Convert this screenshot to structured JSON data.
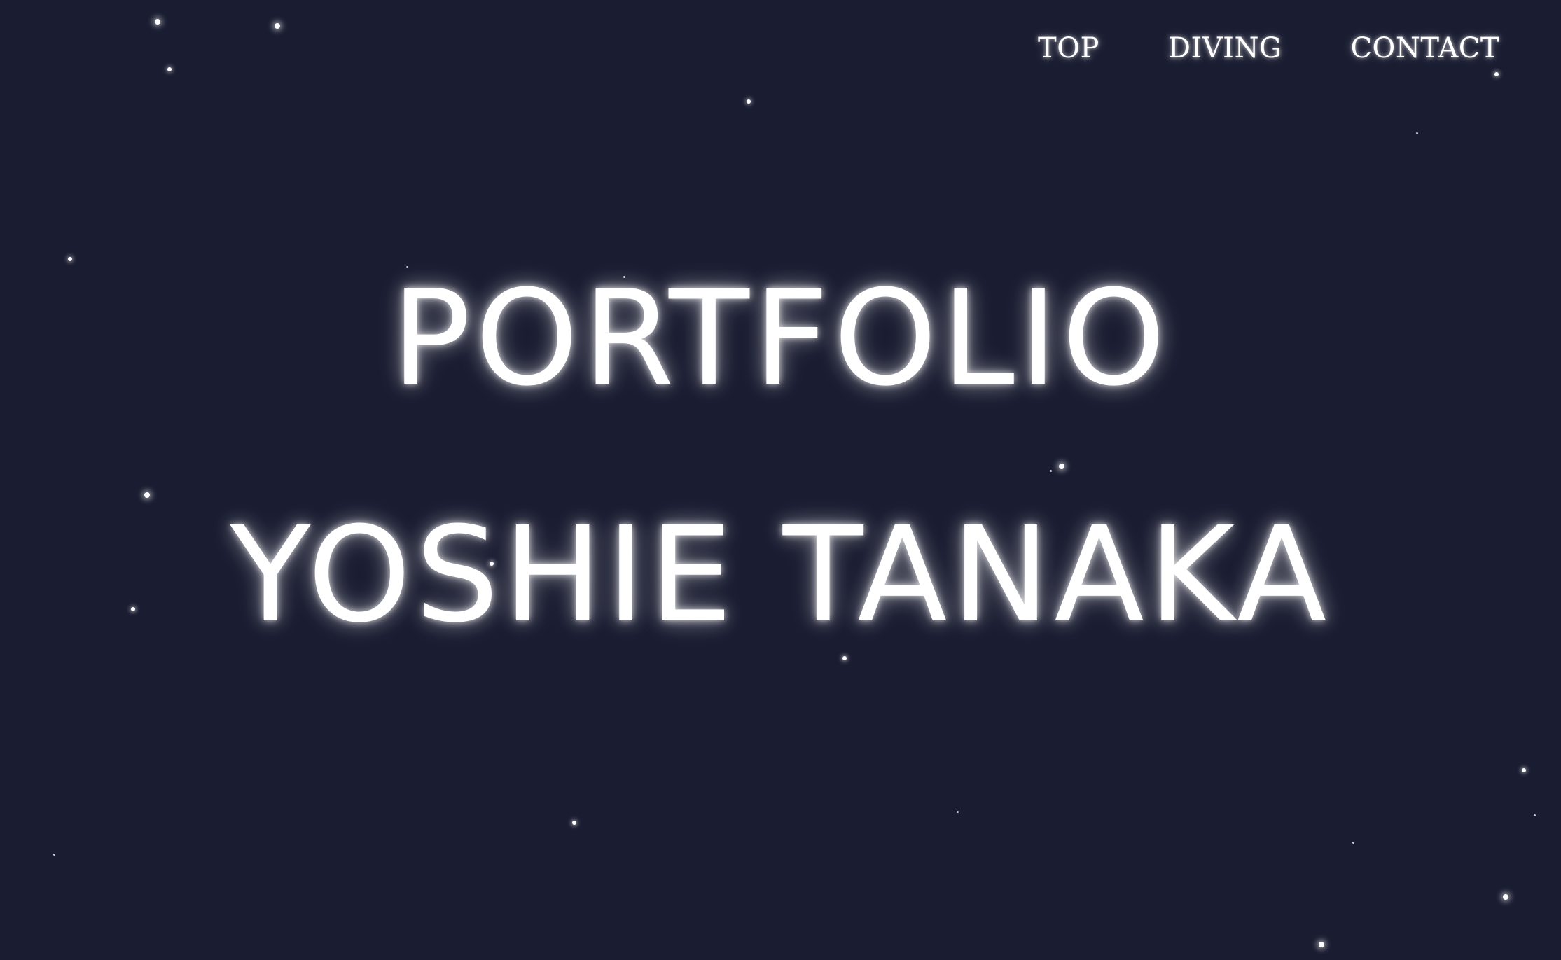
{
  "nav": {
    "items": [
      {
        "label": "TOP"
      },
      {
        "label": "DIVING"
      },
      {
        "label": "CONTACT"
      }
    ]
  },
  "hero": {
    "title": "PORTFOLIO",
    "name": "YOSHIE TANAKA"
  },
  "colors": {
    "background": "#1a1d31",
    "text": "#ffffff",
    "star": "#ffffff"
  }
}
